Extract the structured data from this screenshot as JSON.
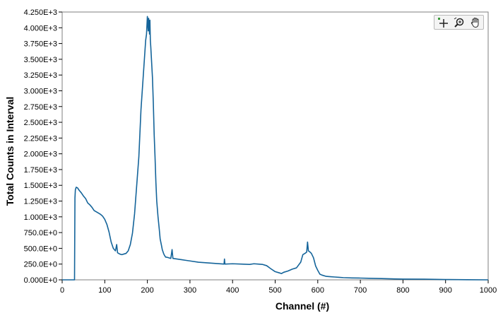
{
  "chart_data": {
    "type": "line",
    "xlabel": "Channel (#)",
    "ylabel": "Total Counts in Interval",
    "xlim": [
      0,
      1000
    ],
    "ylim": [
      0,
      4250
    ],
    "x_ticks": [
      0,
      100,
      200,
      300,
      400,
      500,
      600,
      700,
      800,
      900,
      1000
    ],
    "y_ticks": [
      {
        "value": 0,
        "label": "0.000E+0"
      },
      {
        "value": 250,
        "label": "250.0E+0"
      },
      {
        "value": 500,
        "label": "500.0E+0"
      },
      {
        "value": 750,
        "label": "750.0E+0"
      },
      {
        "value": 1000,
        "label": "1.000E+3"
      },
      {
        "value": 1250,
        "label": "1.250E+3"
      },
      {
        "value": 1500,
        "label": "1.500E+3"
      },
      {
        "value": 1750,
        "label": "1.750E+3"
      },
      {
        "value": 2000,
        "label": "2.000E+3"
      },
      {
        "value": 2250,
        "label": "2.250E+3"
      },
      {
        "value": 2500,
        "label": "2.500E+3"
      },
      {
        "value": 2750,
        "label": "2.750E+3"
      },
      {
        "value": 3000,
        "label": "3.000E+3"
      },
      {
        "value": 3250,
        "label": "3.250E+3"
      },
      {
        "value": 3500,
        "label": "3.500E+3"
      },
      {
        "value": 3750,
        "label": "3.750E+3"
      },
      {
        "value": 4000,
        "label": "4.000E+3"
      },
      {
        "value": 4250,
        "label": "4.250E+3"
      }
    ],
    "grid": false,
    "line_color": "#14649a",
    "series": [
      {
        "x": [
          0,
          29,
          30,
          31,
          33,
          36,
          40,
          45,
          50,
          55,
          60,
          65,
          70,
          75,
          80,
          85,
          90,
          95,
          100,
          105,
          110,
          115,
          120,
          125,
          128,
          130,
          135,
          140,
          145,
          150,
          155,
          160,
          165,
          170,
          175,
          180,
          185,
          190,
          193,
          196,
          198,
          200,
          202,
          203,
          204,
          205,
          206,
          207,
          208,
          210,
          212,
          214,
          216,
          218,
          220,
          222,
          225,
          228,
          230,
          233,
          235,
          238,
          240,
          243,
          245,
          250,
          255,
          258,
          260,
          270,
          280,
          290,
          300,
          320,
          340,
          360,
          380,
          381,
          382,
          400,
          420,
          440,
          450,
          460,
          470,
          480,
          490,
          500,
          510,
          515,
          520,
          530,
          540,
          550,
          560,
          565,
          570,
          574,
          576,
          578,
          580,
          582,
          585,
          590,
          595,
          600,
          605,
          610,
          620,
          630,
          640,
          650,
          660,
          680,
          700,
          720,
          750,
          780,
          800,
          850,
          900,
          950,
          1000
        ],
        "y": [
          0,
          0,
          1300,
          1430,
          1470,
          1460,
          1420,
          1380,
          1330,
          1290,
          1220,
          1190,
          1150,
          1100,
          1080,
          1060,
          1040,
          1010,
          960,
          880,
          760,
          600,
          500,
          460,
          560,
          430,
          410,
          400,
          410,
          420,
          460,
          560,
          740,
          1050,
          1500,
          1950,
          2700,
          3200,
          3500,
          3800,
          3900,
          4180,
          3950,
          4150,
          4050,
          3900,
          4120,
          3800,
          3700,
          3450,
          3200,
          2800,
          2300,
          1950,
          1550,
          1250,
          1000,
          800,
          650,
          550,
          480,
          420,
          390,
          360,
          360,
          350,
          340,
          480,
          340,
          330,
          320,
          310,
          300,
          280,
          270,
          260,
          250,
          330,
          250,
          255,
          250,
          245,
          255,
          250,
          245,
          225,
          175,
          130,
          110,
          100,
          120,
          140,
          170,
          190,
          280,
          400,
          420,
          440,
          600,
          460,
          450,
          440,
          420,
          350,
          220,
          150,
          90,
          75,
          55,
          50,
          45,
          40,
          35,
          30,
          28,
          25,
          20,
          15,
          12,
          10,
          5,
          2,
          0
        ]
      }
    ]
  },
  "toolbar": {
    "cursor_tool": "cursor-move-icon",
    "zoom_tool": "zoom-icon",
    "pan_tool": "pan-hand-icon"
  }
}
